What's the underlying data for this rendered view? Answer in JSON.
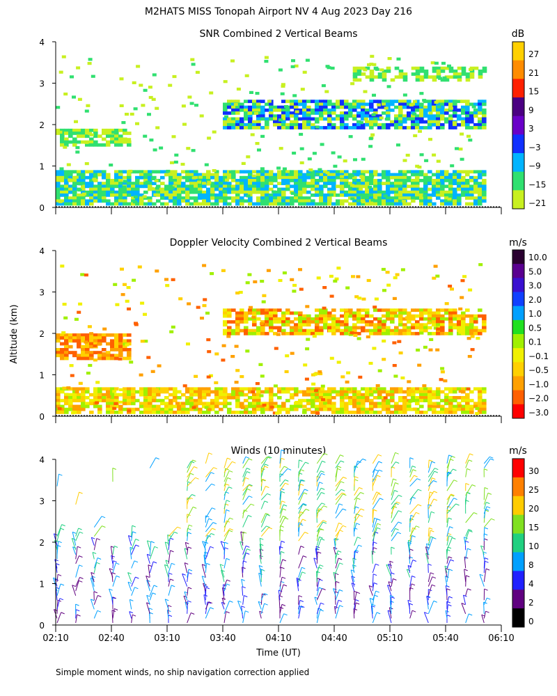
{
  "figure": {
    "title": "M2HATS MISS Tonopah Airport NV   4 Aug 2023 Day 216",
    "ylabel": "Altitude (km)",
    "xlabel": "Time (UT)",
    "footnote": "Simple moment winds, no ship navigation correction applied"
  },
  "chart_data": [
    {
      "type": "heatmap",
      "title": "SNR Combined 2 Vertical Beams",
      "xlabel": "Time (UT)",
      "ylabel": "Altitude (km)",
      "x_ticks": [
        "02:10",
        "02:40",
        "03:10",
        "03:40",
        "04:10",
        "04:40",
        "05:10",
        "05:40",
        "06:10"
      ],
      "xlim": [
        "02:10",
        "06:10"
      ],
      "y_ticks": [
        "0",
        "1",
        "2",
        "3",
        "4"
      ],
      "ylim": [
        0,
        4
      ],
      "colorbar": {
        "unit": "dB",
        "labels": [
          "27",
          "21",
          "15",
          "9",
          "3",
          "−3",
          "−9",
          "−15",
          "−21"
        ],
        "colors": [
          "#ffd000",
          "#ff8c00",
          "#ff2000",
          "#4b0082",
          "#6a00c8",
          "#1030ff",
          "#00b4ff",
          "#30e070",
          "#c8f020"
        ]
      },
      "layers": [
        {
          "name": "near-surface",
          "alt_km": [
            0.1,
            0.9
          ],
          "time": [
            "02:10",
            "06:00"
          ],
          "typical_dB": "-21 to -9"
        },
        {
          "name": "lower elevated layer",
          "alt_km": [
            1.5,
            1.9
          ],
          "time": [
            "02:10",
            "02:50"
          ],
          "typical_dB": "-15 to -21"
        },
        {
          "name": "main elevated layer",
          "alt_km": [
            1.9,
            2.6
          ],
          "time": [
            "03:40",
            "06:00"
          ],
          "typical_dB": "-15 to -3"
        },
        {
          "name": "upper layer",
          "alt_km": [
            3.1,
            3.4
          ],
          "time": [
            "04:50",
            "06:00"
          ],
          "typical_dB": "-21"
        }
      ]
    },
    {
      "type": "heatmap",
      "title": "Doppler Velocity Combined 2 Vertical Beams",
      "xlabel": "Time (UT)",
      "ylabel": "Altitude (km)",
      "x_ticks": [
        "02:10",
        "02:40",
        "03:10",
        "03:40",
        "04:10",
        "04:40",
        "05:10",
        "05:40",
        "06:10"
      ],
      "xlim": [
        "02:10",
        "06:10"
      ],
      "y_ticks": [
        "0",
        "1",
        "2",
        "3",
        "4"
      ],
      "ylim": [
        0,
        4
      ],
      "colorbar": {
        "unit": "m/s",
        "labels": [
          "10.0",
          "5.0",
          "3.0",
          "2.0",
          "1.0",
          "0.5",
          "0.1",
          "−0.1",
          "−0.5",
          "−1.0",
          "−2.0",
          "−3.0"
        ],
        "colors": [
          "#2a0030",
          "#5a0090",
          "#3a10d0",
          "#1040ff",
          "#00a0ff",
          "#20e020",
          "#a0f000",
          "#f0f000",
          "#ffd000",
          "#ffa000",
          "#ff6000",
          "#ff0000"
        ]
      },
      "layers": [
        {
          "name": "near-surface",
          "alt_km": [
            0.1,
            0.7
          ],
          "time": [
            "02:10",
            "06:00"
          ],
          "typical_mps": "-0.5 to 0.1"
        },
        {
          "name": "early elevated layer",
          "alt_km": [
            1.4,
            2.0
          ],
          "time": [
            "02:10",
            "02:50"
          ],
          "typical_mps": "-1.0 to -0.5"
        },
        {
          "name": "main elevated layer",
          "alt_km": [
            2.0,
            2.6
          ],
          "time": [
            "03:40",
            "06:00"
          ],
          "typical_mps": "-1.0 to 0.1"
        }
      ]
    },
    {
      "type": "scatter",
      "title": "Winds (10 minutes)",
      "xlabel": "Time (UT)",
      "ylabel": "Altitude (km)",
      "x_ticks": [
        "02:10",
        "02:40",
        "03:10",
        "03:40",
        "04:10",
        "04:40",
        "05:10",
        "05:40",
        "06:10"
      ],
      "xlim": [
        "02:10",
        "06:10"
      ],
      "y_ticks": [
        "0",
        "1",
        "2",
        "3",
        "4"
      ],
      "ylim": [
        0,
        4
      ],
      "colorbar": {
        "unit": "m/s",
        "labels": [
          "30",
          "25",
          "20",
          "15",
          "10",
          "8",
          "4",
          "2",
          "0"
        ],
        "colors": [
          "#ff0000",
          "#ff8000",
          "#ffcc00",
          "#80e020",
          "#20d080",
          "#00a0ff",
          "#2020ff",
          "#600080",
          "#000000"
        ]
      },
      "profile_times": [
        "02:10",
        "02:20",
        "02:30",
        "02:40",
        "02:50",
        "03:00",
        "03:10",
        "03:20",
        "03:30",
        "03:40",
        "03:50",
        "04:00",
        "04:10",
        "04:20",
        "04:30",
        "04:40",
        "04:50",
        "05:00",
        "05:10",
        "05:20",
        "05:30",
        "05:40",
        "05:50",
        "06:00"
      ],
      "note": "Wind barbs plotted every 10 minutes at multiple altitudes from 0 to 4 km"
    }
  ]
}
